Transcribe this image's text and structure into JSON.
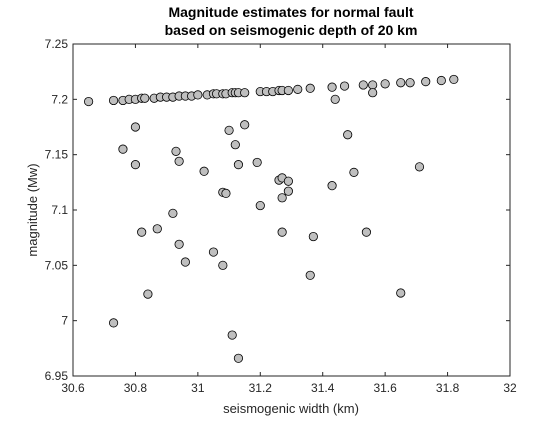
{
  "chart_data": {
    "type": "scatter",
    "title": [
      "Magnitude estimates for normal fault",
      "based on seismogenic depth of 20 km"
    ],
    "xlabel": "seismogenic width (km)",
    "ylabel": "magnitude (Mw)",
    "xlim": [
      30.6,
      32
    ],
    "ylim": [
      6.95,
      7.25
    ],
    "xticks": [
      30.6,
      30.8,
      31,
      31.2,
      31.4,
      31.6,
      31.8,
      32
    ],
    "xtick_labels": [
      "30.6",
      "30.8",
      "31",
      "31.2",
      "31.4",
      "31.6",
      "31.8",
      "32"
    ],
    "yticks": [
      6.95,
      7,
      7.05,
      7.1,
      7.15,
      7.2,
      7.25
    ],
    "ytick_labels": [
      "6.95",
      "7",
      "7.05",
      "7.1",
      "7.15",
      "7.2",
      "7.25"
    ],
    "grid": false,
    "marker": {
      "shape": "circle",
      "face_color": "#bfbfbf",
      "edge_color": "#000000"
    },
    "points": [
      [
        30.65,
        7.198
      ],
      [
        30.73,
        7.199
      ],
      [
        30.76,
        7.199
      ],
      [
        30.78,
        7.2
      ],
      [
        30.8,
        7.2
      ],
      [
        30.82,
        7.201
      ],
      [
        30.83,
        7.201
      ],
      [
        30.86,
        7.201
      ],
      [
        30.88,
        7.202
      ],
      [
        30.9,
        7.202
      ],
      [
        30.92,
        7.202
      ],
      [
        30.94,
        7.203
      ],
      [
        30.96,
        7.203
      ],
      [
        30.98,
        7.203
      ],
      [
        31.0,
        7.204
      ],
      [
        31.03,
        7.204
      ],
      [
        31.05,
        7.205
      ],
      [
        31.06,
        7.205
      ],
      [
        31.08,
        7.205
      ],
      [
        31.09,
        7.205
      ],
      [
        31.11,
        7.206
      ],
      [
        31.12,
        7.206
      ],
      [
        31.13,
        7.206
      ],
      [
        31.15,
        7.206
      ],
      [
        31.2,
        7.207
      ],
      [
        31.22,
        7.207
      ],
      [
        31.24,
        7.207
      ],
      [
        31.26,
        7.208
      ],
      [
        31.27,
        7.208
      ],
      [
        31.29,
        7.208
      ],
      [
        31.32,
        7.209
      ],
      [
        31.36,
        7.21
      ],
      [
        31.43,
        7.211
      ],
      [
        31.47,
        7.212
      ],
      [
        31.53,
        7.213
      ],
      [
        31.56,
        7.213
      ],
      [
        31.6,
        7.214
      ],
      [
        31.65,
        7.215
      ],
      [
        31.68,
        7.215
      ],
      [
        31.73,
        7.216
      ],
      [
        31.78,
        7.217
      ],
      [
        31.82,
        7.218
      ],
      [
        31.44,
        7.2
      ],
      [
        31.56,
        7.206
      ],
      [
        30.76,
        7.155
      ],
      [
        30.8,
        7.175
      ],
      [
        30.8,
        7.141
      ],
      [
        30.93,
        7.153
      ],
      [
        30.94,
        7.144
      ],
      [
        31.02,
        7.135
      ],
      [
        31.1,
        7.172
      ],
      [
        31.12,
        7.159
      ],
      [
        31.13,
        7.141
      ],
      [
        31.15,
        7.177
      ],
      [
        31.19,
        7.143
      ],
      [
        31.48,
        7.168
      ],
      [
        31.5,
        7.134
      ],
      [
        31.71,
        7.139
      ],
      [
        31.08,
        7.116
      ],
      [
        31.09,
        7.115
      ],
      [
        31.2,
        7.104
      ],
      [
        31.26,
        7.127
      ],
      [
        31.27,
        7.129
      ],
      [
        31.29,
        7.126
      ],
      [
        31.29,
        7.117
      ],
      [
        31.27,
        7.111
      ],
      [
        31.43,
        7.122
      ],
      [
        30.92,
        7.097
      ],
      [
        30.82,
        7.08
      ],
      [
        30.87,
        7.083
      ],
      [
        30.94,
        7.069
      ],
      [
        30.96,
        7.053
      ],
      [
        31.05,
        7.062
      ],
      [
        31.08,
        7.05
      ],
      [
        31.27,
        7.08
      ],
      [
        31.37,
        7.076
      ],
      [
        31.54,
        7.08
      ],
      [
        31.36,
        7.041
      ],
      [
        30.84,
        7.024
      ],
      [
        31.65,
        7.025
      ],
      [
        30.73,
        6.998
      ],
      [
        31.11,
        6.987
      ],
      [
        31.13,
        6.966
      ]
    ]
  }
}
